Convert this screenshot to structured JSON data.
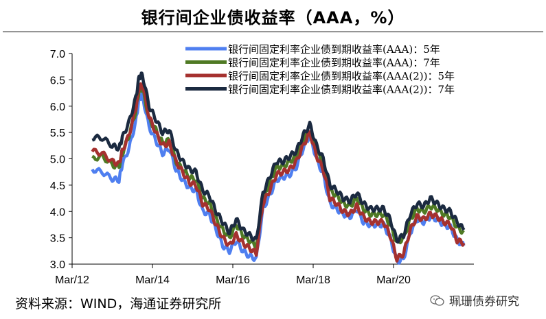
{
  "header": {
    "title": "银行间企业债收益率（AAA，%）"
  },
  "footer": {
    "source": "资料来源：WIND，海通证券研究所",
    "watermark": "珮珊债券研究"
  },
  "colors": {
    "series_5y": "#4f7ff0",
    "series_7y": "#4f7a24",
    "series_2_5y": "#a5312f",
    "series_2_7y": "#1b2a40"
  },
  "chart_data": {
    "type": "line",
    "title": "银行间企业债收益率（AAA，%）",
    "xlabel": "",
    "ylabel": "",
    "ylim": [
      3.0,
      7.0
    ],
    "yticks": [
      "3.0",
      "3.5",
      "4.0",
      "4.5",
      "5.0",
      "5.5",
      "6.0",
      "6.5",
      "7.0"
    ],
    "xlim": [
      "2012-03",
      "2022-03"
    ],
    "xticks": [
      "Mar/12",
      "Mar/14",
      "Mar/16",
      "Mar/18",
      "Mar/20"
    ],
    "legend_position": "top-right",
    "grid": false,
    "x": [
      "2012-09",
      "2012-12",
      "2013-03",
      "2013-05",
      "2013-06",
      "2013-08",
      "2013-10",
      "2013-11",
      "2013-12",
      "2014-02",
      "2014-04",
      "2014-06",
      "2014-08",
      "2014-10",
      "2014-12",
      "2015-02",
      "2015-04",
      "2015-06",
      "2015-08",
      "2015-10",
      "2015-12",
      "2016-02",
      "2016-04",
      "2016-06",
      "2016-08",
      "2016-10",
      "2016-12",
      "2017-02",
      "2017-04",
      "2017-06",
      "2017-08",
      "2017-10",
      "2017-12",
      "2018-02",
      "2018-04",
      "2018-06",
      "2018-08",
      "2018-10",
      "2018-12",
      "2019-02",
      "2019-04",
      "2019-06",
      "2019-08",
      "2019-10",
      "2019-12",
      "2020-02",
      "2020-04",
      "2020-06",
      "2020-08",
      "2020-10",
      "2020-12",
      "2021-02",
      "2021-04",
      "2021-06",
      "2021-08",
      "2021-10",
      "2021-12"
    ],
    "series": [
      {
        "name": "银行间固定利率企业债到期收益率(AAA)：5年",
        "values": [
          4.8,
          4.75,
          4.62,
          4.6,
          4.9,
          5.2,
          5.7,
          6.15,
          6.2,
          5.6,
          5.35,
          5.1,
          5.2,
          4.8,
          4.6,
          4.45,
          4.4,
          4.0,
          3.95,
          3.65,
          3.35,
          3.25,
          3.45,
          3.25,
          3.15,
          3.1,
          4.05,
          4.3,
          4.6,
          4.65,
          4.7,
          4.85,
          5.2,
          5.45,
          5.0,
          4.7,
          4.15,
          4.05,
          3.95,
          3.9,
          4.05,
          3.8,
          3.75,
          3.75,
          3.75,
          3.5,
          3.05,
          3.1,
          3.6,
          3.85,
          3.8,
          3.9,
          3.85,
          3.75,
          3.7,
          3.45,
          3.35
        ]
      },
      {
        "name": "银行间固定利率企业债到期收益率(AAA)：7年",
        "values": [
          5.0,
          5.05,
          4.88,
          4.85,
          5.1,
          5.45,
          5.9,
          6.3,
          6.35,
          5.75,
          5.55,
          5.3,
          5.35,
          4.95,
          4.8,
          4.65,
          4.6,
          4.25,
          4.15,
          3.85,
          3.65,
          3.5,
          3.75,
          3.55,
          3.45,
          3.35,
          4.25,
          4.55,
          4.85,
          4.85,
          4.95,
          5.05,
          5.35,
          5.55,
          5.15,
          4.9,
          4.4,
          4.3,
          4.15,
          4.1,
          4.25,
          4.05,
          3.95,
          3.95,
          3.95,
          3.75,
          3.4,
          3.5,
          3.85,
          4.05,
          4.0,
          4.1,
          4.05,
          3.95,
          3.9,
          3.7,
          3.6
        ]
      },
      {
        "name": "银行间固定利率企业债到期收益率(AAA(2))：5年",
        "values": [
          5.15,
          5.1,
          4.95,
          4.9,
          5.15,
          5.45,
          5.95,
          6.35,
          6.4,
          5.8,
          5.5,
          5.25,
          5.3,
          4.95,
          4.75,
          4.55,
          4.5,
          4.15,
          4.05,
          3.75,
          3.5,
          3.35,
          3.55,
          3.4,
          3.3,
          3.2,
          4.15,
          4.4,
          4.7,
          4.75,
          4.8,
          4.95,
          5.25,
          5.5,
          5.05,
          4.8,
          4.25,
          4.15,
          4.0,
          3.95,
          4.1,
          3.9,
          3.8,
          3.8,
          3.8,
          3.55,
          3.1,
          3.2,
          3.65,
          3.9,
          3.85,
          3.95,
          3.9,
          3.8,
          3.75,
          3.45,
          3.4
        ]
      },
      {
        "name": "银行间固定利率企业债到期收益率(AAA(2))：7年",
        "values": [
          5.4,
          5.4,
          5.25,
          5.2,
          5.4,
          5.7,
          6.15,
          6.55,
          6.6,
          6.0,
          5.75,
          5.5,
          5.55,
          5.15,
          4.95,
          4.8,
          4.75,
          4.4,
          4.3,
          4.0,
          3.8,
          3.6,
          3.85,
          3.65,
          3.55,
          3.45,
          4.35,
          4.65,
          4.95,
          4.95,
          5.05,
          5.15,
          5.45,
          5.65,
          5.25,
          5.0,
          4.5,
          4.4,
          4.25,
          4.2,
          4.35,
          4.15,
          4.05,
          4.05,
          4.05,
          3.85,
          3.45,
          3.55,
          3.95,
          4.15,
          4.1,
          4.25,
          4.15,
          4.05,
          4.0,
          3.8,
          3.65
        ]
      }
    ]
  }
}
